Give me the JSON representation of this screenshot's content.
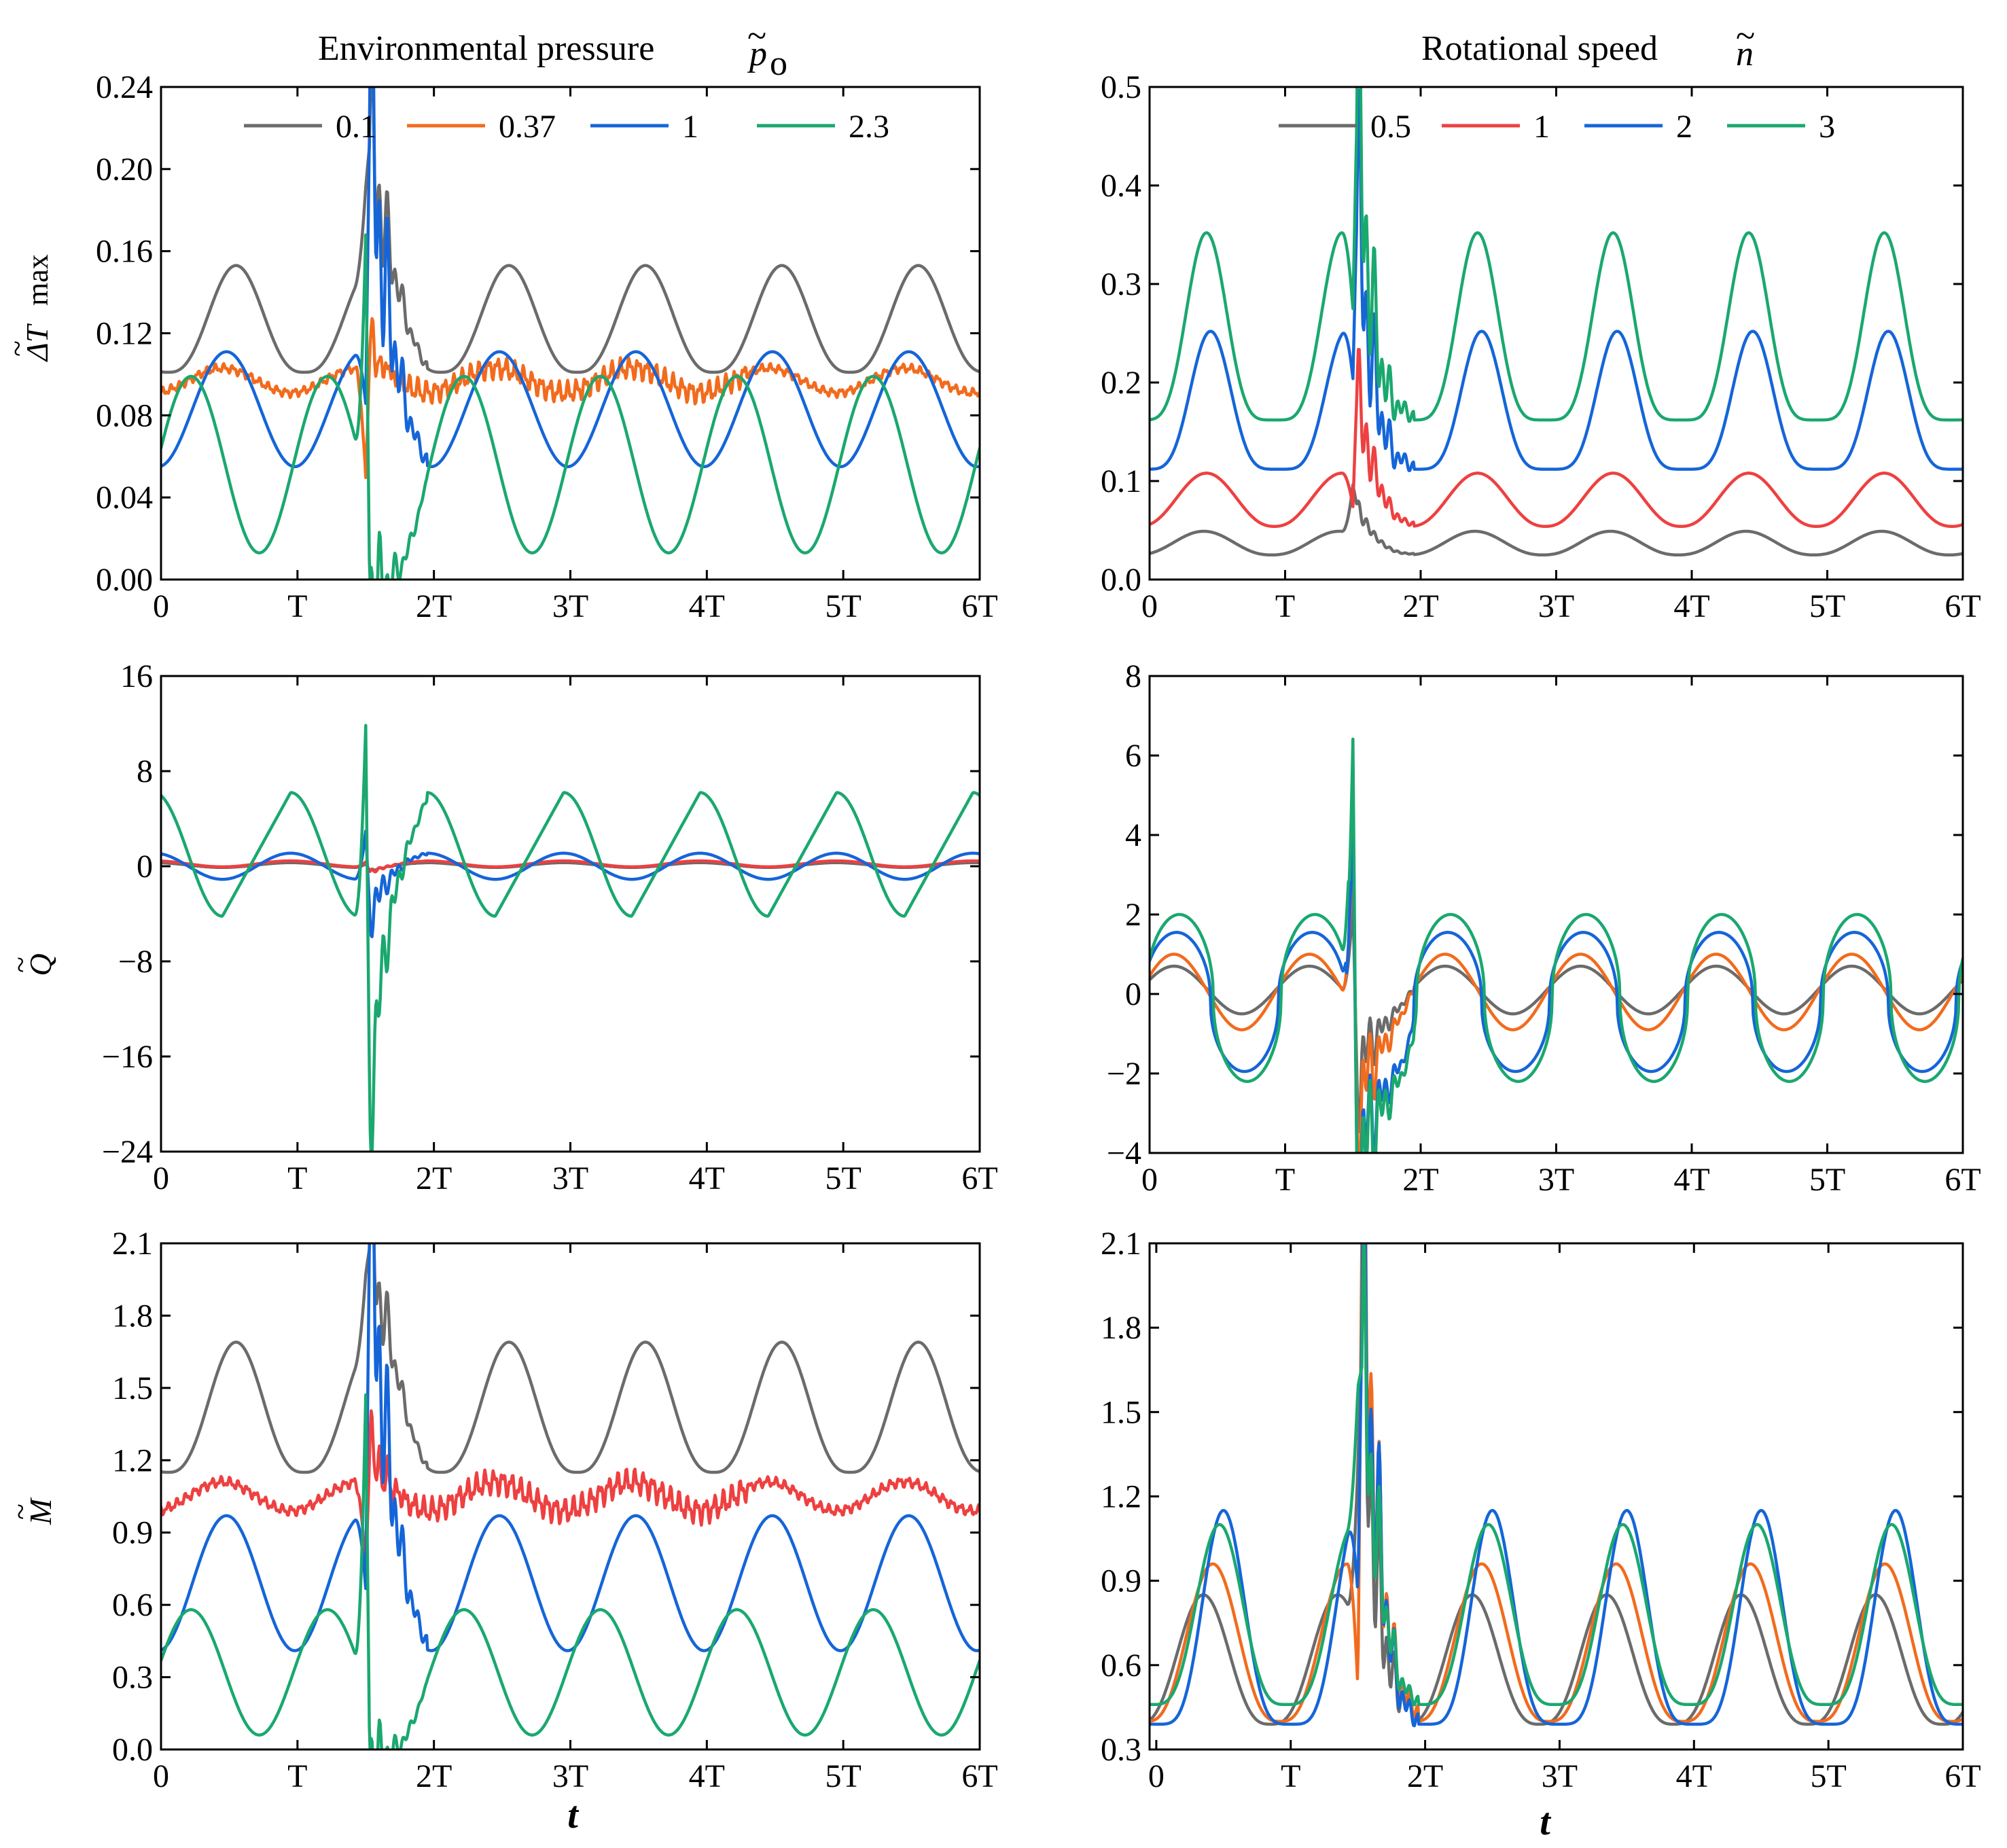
{
  "colors": {
    "gray": "#6b6b6b",
    "orange": "#f26b1d",
    "red": "#ee4040",
    "blue": "#1565d8",
    "green": "#1aa86f"
  },
  "columns": {
    "left": {
      "title": "Environmental pressure",
      "title_symbol": "p",
      "title_tilde": "~",
      "title_subscript": "o"
    },
    "right": {
      "title": "Rotational speed",
      "title_symbol": "n",
      "title_tilde": "~"
    }
  },
  "legends": {
    "left": [
      {
        "label": "0.1",
        "color": "#6b6b6b"
      },
      {
        "label": "0.37",
        "color": "#f26b1d"
      },
      {
        "label": "1",
        "color": "#1565d8"
      },
      {
        "label": "2.3",
        "color": "#1aa86f"
      }
    ],
    "right": [
      {
        "label": "0.5",
        "color": "#6b6b6b"
      },
      {
        "label": "1",
        "color": "#ee4040"
      },
      {
        "label": "2",
        "color": "#1565d8"
      },
      {
        "label": "3",
        "color": "#1aa86f"
      }
    ]
  },
  "x_axis_label": "t",
  "chart_data": [
    {
      "id": "p-dT",
      "type": "line",
      "ylabel": {
        "tilde": "~",
        "main": "ΔT",
        "suffix": "max"
      },
      "xlim": [
        0,
        6
      ],
      "x_tick_labels": [
        "0",
        "T",
        "2T",
        "3T",
        "4T",
        "5T",
        "6T"
      ],
      "ylim": [
        0,
        0.24
      ],
      "y_ticks": [
        0,
        0.04,
        0.08,
        0.12,
        0.16,
        0.2,
        0.24
      ],
      "y_tick_labels": [
        "0.00",
        "0.04",
        "0.08",
        "0.12",
        "0.16",
        "0.20",
        "0.24"
      ],
      "series": [
        {
          "name": "0.1",
          "color": "#6b6b6b",
          "kind": "periodic",
          "mean": 0.127,
          "amp": 0.026,
          "phase": 0.55,
          "pow": 1.4,
          "spike": [
            0.04,
            0.06,
            0.04,
            0.03
          ]
        },
        {
          "name": "0.37",
          "color": "#f26b1d",
          "kind": "periodic",
          "mean": 0.097,
          "amp": 0.006,
          "phase": 0.45,
          "pow": 1,
          "noise": 0.006,
          "spike": [
            -0.055,
            0.01,
            0.015,
            0.005
          ]
        },
        {
          "name": "1",
          "color": "#1565d8",
          "kind": "periodic",
          "mean": 0.083,
          "amp": 0.028,
          "phase": 0.48,
          "pow": 1,
          "spike": [
            -0.025,
            0.12,
            0.07,
            0.05
          ]
        },
        {
          "name": "2.3",
          "color": "#1aa86f",
          "kind": "periodic",
          "mean": 0.056,
          "amp": 0.043,
          "phase": 0.22,
          "pow": 1,
          "spike": [
            0.12,
            -0.05,
            0.03,
            -0.02
          ]
        }
      ]
    },
    {
      "id": "n-dT",
      "type": "line",
      "xlim": [
        0,
        6
      ],
      "x_tick_labels": [
        "0",
        "T",
        "2T",
        "3T",
        "4T",
        "5T",
        "6T"
      ],
      "ylim": [
        0,
        0.5
      ],
      "y_ticks": [
        0,
        0.1,
        0.2,
        0.3,
        0.4,
        0.5
      ],
      "y_tick_labels": [
        "0.0",
        "0.1",
        "0.2",
        "0.3",
        "0.4",
        "0.5"
      ],
      "series": [
        {
          "name": "0.5",
          "color": "#6b6b6b",
          "kind": "periodic",
          "mean": 0.037,
          "amp": 0.012,
          "phase": 0.4,
          "pow": 1.2,
          "spike": [
            0.05,
            0.03,
            0.01,
            0.0
          ]
        },
        {
          "name": "1",
          "color": "#ee4040",
          "kind": "periodic",
          "mean": 0.081,
          "amp": 0.027,
          "phase": 0.42,
          "pow": 1.2,
          "spike": [
            -0.03,
            0.09,
            0.05,
            0.02
          ]
        },
        {
          "name": "2",
          "color": "#1565d8",
          "kind": "periodic",
          "mean": 0.182,
          "amp": 0.07,
          "phase": 0.45,
          "pow": 2.4,
          "spike": [
            -0.04,
            0.14,
            0.11,
            0.08
          ]
        },
        {
          "name": "3",
          "color": "#1aa86f",
          "kind": "periodic",
          "mean": 0.257,
          "amp": 0.095,
          "phase": 0.42,
          "pow": 2.4,
          "spike": [
            -0.05,
            0.17,
            0.13,
            0.09
          ]
        }
      ]
    },
    {
      "id": "p-Q",
      "type": "line",
      "ylabel": {
        "tilde": "~",
        "main": "Q"
      },
      "xlim": [
        0,
        6
      ],
      "x_tick_labels": [
        "0",
        "T",
        "2T",
        "3T",
        "4T",
        "5T",
        "6T"
      ],
      "ylim": [
        -24,
        16
      ],
      "y_ticks": [
        -24,
        -16,
        -8,
        0,
        8,
        16
      ],
      "y_tick_labels": [
        "−24",
        "−16",
        "−8",
        "0",
        "8",
        "16"
      ],
      "series": [
        {
          "name": "0.1",
          "color": "#6b6b6b",
          "kind": "periodic",
          "mean": 0.1,
          "amp": 0.2,
          "phase": 0.95,
          "pow": 1,
          "spike": [
            0.3,
            -0.3,
            0.1,
            0
          ]
        },
        {
          "name": "0.37",
          "color": "#ee4040",
          "kind": "periodic",
          "mean": 0.2,
          "amp": 0.25,
          "phase": 0.95,
          "pow": 1,
          "spike": [
            0.4,
            -0.5,
            0.2,
            0
          ]
        },
        {
          "name": "1",
          "color": "#1565d8",
          "kind": "periodic",
          "mean": 0.0,
          "amp": 1.1,
          "phase": 0.95,
          "pow": 1,
          "spike": [
            4,
            -3,
            -2,
            -1
          ]
        },
        {
          "name": "2.3",
          "color": "#1aa86f",
          "kind": "saw",
          "mean": 1.0,
          "amp": 5.2,
          "phase": 0.95,
          "pow": 1,
          "spike": [
            15,
            -18,
            -5,
            -3
          ]
        }
      ]
    },
    {
      "id": "n-Q",
      "type": "line",
      "xlim": [
        0,
        6
      ],
      "x_tick_labels": [
        "0",
        "T",
        "2T",
        "3T",
        "4T",
        "5T",
        "6T"
      ],
      "ylim": [
        -4,
        8
      ],
      "y_ticks": [
        -4,
        -2,
        0,
        2,
        4,
        6,
        8
      ],
      "y_tick_labels": [
        "−4",
        "−2",
        "0",
        "2",
        "4",
        "6",
        "8"
      ],
      "series": [
        {
          "name": "0.5",
          "color": "#6b6b6b",
          "kind": "periodic",
          "mean": 0.1,
          "amp": 0.6,
          "phase": 0.18,
          "pow": 1,
          "spike": [
            2.5,
            -1.8,
            -1.2,
            -0.8
          ]
        },
        {
          "name": "1",
          "color": "#f26b1d",
          "kind": "periodic",
          "mean": 0.05,
          "amp": 0.95,
          "phase": 0.18,
          "pow": 1,
          "spike": [
            4,
            -2.4,
            -1.6,
            -1.2
          ]
        },
        {
          "name": "2",
          "color": "#1565d8",
          "kind": "square",
          "mean": -0.2,
          "amp": 1.75,
          "phase": 0.2,
          "pow": 1,
          "spike": [
            6,
            -3,
            -2,
            -1.6
          ]
        },
        {
          "name": "3",
          "color": "#1aa86f",
          "kind": "square",
          "mean": -0.1,
          "amp": 2.1,
          "phase": 0.22,
          "pow": 1,
          "spike": [
            7.5,
            -3.4,
            -2.4,
            -1.8
          ]
        }
      ]
    },
    {
      "id": "p-M",
      "type": "line",
      "ylabel": {
        "tilde": "~",
        "main": "M"
      },
      "xlim": [
        0,
        6
      ],
      "x_tick_labels": [
        "0",
        "T",
        "2T",
        "3T",
        "4T",
        "5T",
        "6T"
      ],
      "ylim": [
        0,
        2.1
      ],
      "y_ticks": [
        0,
        0.3,
        0.6,
        0.9,
        1.2,
        1.5,
        1.8,
        2.1
      ],
      "y_tick_labels": [
        "0.0",
        "0.3",
        "0.6",
        "0.9",
        "1.2",
        "1.5",
        "1.8",
        "2.1"
      ],
      "series": [
        {
          "name": "0.1",
          "color": "#6b6b6b",
          "kind": "periodic",
          "mean": 1.42,
          "amp": 0.27,
          "phase": 0.55,
          "pow": 1.4,
          "spike": [
            0.3,
            0.4,
            0.25,
            0.2
          ]
        },
        {
          "name": "0.37",
          "color": "#ee4040",
          "kind": "periodic",
          "mean": 1.05,
          "amp": 0.06,
          "phase": 0.45,
          "pow": 1,
          "noise": 0.06,
          "spike": [
            -0.4,
            0.15,
            0.1,
            0.05
          ]
        },
        {
          "name": "1",
          "color": "#1565d8",
          "kind": "periodic",
          "mean": 0.69,
          "amp": 0.28,
          "phase": 0.48,
          "pow": 1,
          "spike": [
            -0.3,
            1.3,
            0.6,
            0.4
          ]
        },
        {
          "name": "2.3",
          "color": "#1aa86f",
          "kind": "periodic",
          "mean": 0.32,
          "amp": 0.26,
          "phase": 0.22,
          "pow": 1,
          "spike": [
            1.2,
            -0.3,
            0.2,
            -0.1
          ]
        }
      ]
    },
    {
      "id": "n-M",
      "type": "line",
      "xlim": [
        -0.05,
        6
      ],
      "x_tick_labels": [
        "0",
        "T",
        "2T",
        "3T",
        "4T",
        "5T",
        "6T"
      ],
      "ylim": [
        0.3,
        2.1
      ],
      "y_ticks": [
        0.3,
        0.6,
        0.9,
        1.2,
        1.5,
        1.8,
        2.1
      ],
      "y_tick_labels": [
        "0.3",
        "0.6",
        "0.9",
        "1.2",
        "1.5",
        "1.8",
        "2.1"
      ],
      "series": [
        {
          "name": "0.5",
          "color": "#6b6b6b",
          "kind": "periodic",
          "mean": 0.62,
          "amp": 0.23,
          "phase": 0.35,
          "pow": 1.5,
          "spike": [
            0.6,
            1.1,
            0.5,
            0.3
          ]
        },
        {
          "name": "1",
          "color": "#f26b1d",
          "kind": "periodic",
          "mean": 0.68,
          "amp": 0.28,
          "phase": 0.42,
          "pow": 1.5,
          "spike": [
            -0.4,
            1.3,
            0.6,
            0.35
          ]
        },
        {
          "name": "2",
          "color": "#1565d8",
          "kind": "periodic",
          "mean": 0.77,
          "amp": 0.38,
          "phase": 0.5,
          "pow": 2.2,
          "spike": [
            -0.3,
            0.7,
            0.55,
            0.4
          ]
        },
        {
          "name": "3",
          "color": "#1aa86f",
          "kind": "periodic",
          "mean": 0.78,
          "amp": 0.32,
          "phase": 0.47,
          "pow": 1.8,
          "spike": [
            0.5,
            0.6,
            0.4,
            0.3
          ]
        }
      ]
    }
  ]
}
